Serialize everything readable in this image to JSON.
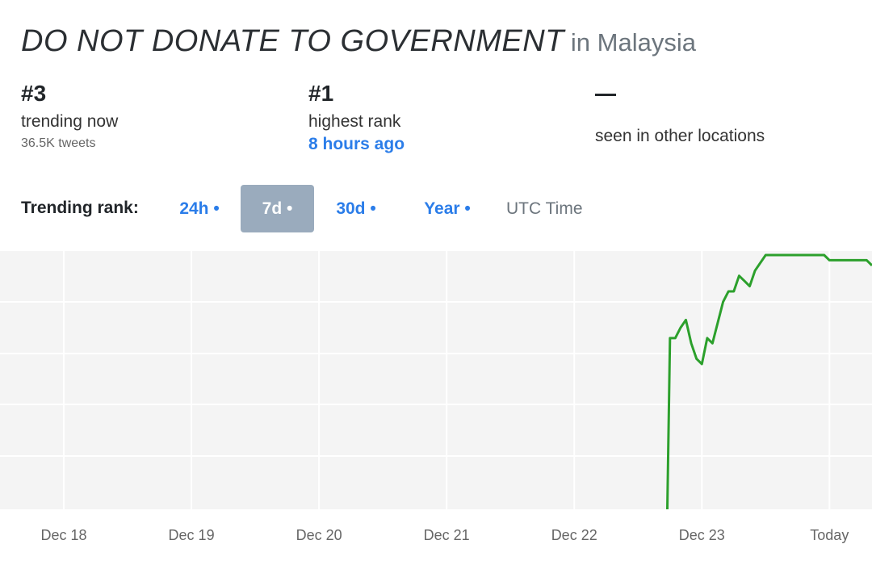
{
  "title": {
    "hashtag": "DO NOT DONATE TO GOVERNMENT",
    "location": "in Malaysia"
  },
  "stats": {
    "current": {
      "value": "#3",
      "label": "trending now",
      "sub": "36.5K tweets"
    },
    "highest": {
      "value": "#1",
      "label": "highest rank",
      "link": "8 hours ago"
    },
    "other": {
      "value": "—",
      "label": "seen in other locations"
    }
  },
  "rank_selector": {
    "label": "Trending rank:",
    "options": [
      {
        "label": "24h •",
        "active": false
      },
      {
        "label": "7d •",
        "active": true
      },
      {
        "label": "30d •",
        "active": false
      },
      {
        "label": "Year •",
        "active": false
      }
    ],
    "timezone": "UTC Time"
  },
  "colors": {
    "line": "#2ca02c",
    "plot_bg": "#f4f4f4",
    "grid": "#ffffff",
    "accent": "#2b7de9",
    "active_button": "#9aabbd"
  },
  "chart_data": {
    "type": "line",
    "x_type": "date",
    "x_ticks": [
      "Dec 18",
      "Dec 19",
      "Dec 20",
      "Dec 21",
      "Dec 22",
      "Dec 23",
      "Today"
    ],
    "xlim": [
      "Dec 17 12:00",
      "Dec 24 08:00"
    ],
    "y_inverted": true,
    "ylim": [
      1,
      50
    ],
    "grid": true,
    "legend": "none",
    "series": [
      {
        "points": [
          {
            "x": "Dec 22 17:30",
            "y": 50
          },
          {
            "x": "Dec 22 18:00",
            "y": 17
          },
          {
            "x": "Dec 22 19:00",
            "y": 17
          },
          {
            "x": "Dec 22 20:00",
            "y": 15
          },
          {
            "x": "Dec 22 21:00",
            "y": 13.5
          },
          {
            "x": "Dec 22 22:00",
            "y": 18
          },
          {
            "x": "Dec 22 23:00",
            "y": 21
          },
          {
            "x": "Dec 23 00:00",
            "y": 22
          },
          {
            "x": "Dec 23 01:00",
            "y": 17
          },
          {
            "x": "Dec 23 02:00",
            "y": 18
          },
          {
            "x": "Dec 23 03:00",
            "y": 14
          },
          {
            "x": "Dec 23 04:00",
            "y": 10
          },
          {
            "x": "Dec 23 05:00",
            "y": 8
          },
          {
            "x": "Dec 23 06:00",
            "y": 8
          },
          {
            "x": "Dec 23 07:00",
            "y": 5
          },
          {
            "x": "Dec 23 08:00",
            "y": 6
          },
          {
            "x": "Dec 23 09:00",
            "y": 7
          },
          {
            "x": "Dec 23 10:00",
            "y": 4
          },
          {
            "x": "Dec 23 12:00",
            "y": 1
          },
          {
            "x": "Dec 23 16:00",
            "y": 1
          },
          {
            "x": "Dec 23 20:00",
            "y": 1
          },
          {
            "x": "Dec 23 23:00",
            "y": 1
          },
          {
            "x": "Dec 24 00:00",
            "y": 2
          },
          {
            "x": "Dec 24 04:00",
            "y": 2
          },
          {
            "x": "Dec 24 07:00",
            "y": 2
          },
          {
            "x": "Dec 24 08:00",
            "y": 3
          }
        ]
      }
    ]
  }
}
